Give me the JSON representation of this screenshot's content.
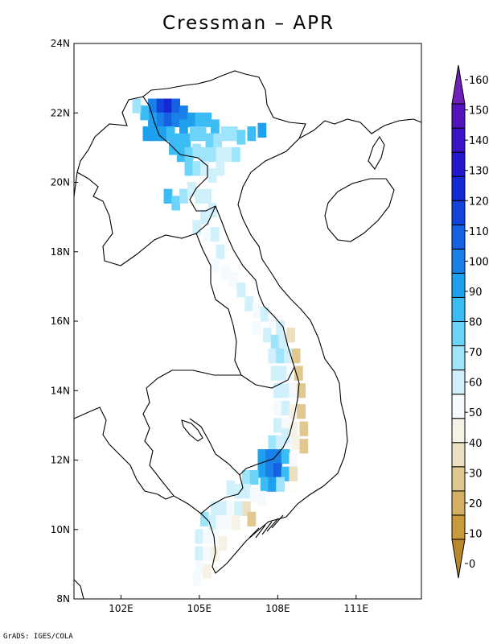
{
  "title": "Cressman – APR",
  "credit": "GrADS: IGES/COLA",
  "map": {
    "lon_range": [
      100.2,
      113.5
    ],
    "lat_range": [
      8,
      24
    ],
    "lat_ticks": [
      "8N",
      "10N",
      "12N",
      "14N",
      "16N",
      "18N",
      "20N",
      "22N",
      "24N"
    ],
    "lon_ticks": [
      "102E",
      "105E",
      "108E",
      "111E"
    ],
    "cells": [
      [
        103.5,
        22.2,
        140
      ],
      [
        103.8,
        22.2,
        150
      ],
      [
        104.1,
        22.2,
        130
      ],
      [
        103.2,
        22.2,
        120
      ],
      [
        104.4,
        22.0,
        120
      ],
      [
        103.5,
        21.8,
        120
      ],
      [
        103.8,
        21.8,
        130
      ],
      [
        104.1,
        21.8,
        120
      ],
      [
        103.2,
        21.8,
        110
      ],
      [
        104.4,
        21.6,
        110
      ],
      [
        104.7,
        21.8,
        110
      ],
      [
        105.0,
        21.8,
        100
      ],
      [
        105.3,
        21.8,
        100
      ],
      [
        105.6,
        21.6,
        100
      ],
      [
        102.9,
        22.0,
        100
      ],
      [
        102.6,
        22.2,
        80
      ],
      [
        103.0,
        21.4,
        110
      ],
      [
        103.3,
        21.4,
        110
      ],
      [
        103.6,
        21.4,
        110
      ],
      [
        103.9,
        21.4,
        100
      ],
      [
        104.2,
        21.2,
        100
      ],
      [
        104.5,
        21.2,
        100
      ],
      [
        104.8,
        21.4,
        90
      ],
      [
        105.1,
        21.4,
        90
      ],
      [
        105.4,
        21.2,
        90
      ],
      [
        105.7,
        21.2,
        80
      ],
      [
        106.0,
        21.4,
        80
      ],
      [
        106.3,
        21.4,
        80
      ],
      [
        106.6,
        21.3,
        90
      ],
      [
        107.0,
        21.4,
        100
      ],
      [
        107.4,
        21.5,
        110
      ],
      [
        104.0,
        21.0,
        100
      ],
      [
        104.3,
        20.8,
        100
      ],
      [
        104.6,
        20.8,
        90
      ],
      [
        104.9,
        20.9,
        80
      ],
      [
        105.2,
        20.8,
        80
      ],
      [
        105.5,
        20.8,
        80
      ],
      [
        105.8,
        20.8,
        70
      ],
      [
        106.1,
        20.8,
        70
      ],
      [
        106.4,
        20.8,
        80
      ],
      [
        104.6,
        20.4,
        90
      ],
      [
        104.9,
        20.4,
        80
      ],
      [
        105.2,
        20.4,
        70
      ],
      [
        105.5,
        20.2,
        70
      ],
      [
        105.8,
        20.4,
        70
      ],
      [
        103.8,
        19.6,
        100
      ],
      [
        104.1,
        19.4,
        90
      ],
      [
        104.4,
        19.6,
        80
      ],
      [
        104.7,
        19.8,
        70
      ],
      [
        105.0,
        19.6,
        70
      ],
      [
        105.3,
        19.6,
        70
      ],
      [
        105.5,
        19.2,
        70
      ],
      [
        105.2,
        19.0,
        70
      ],
      [
        104.9,
        18.7,
        70
      ],
      [
        105.3,
        18.5,
        60
      ],
      [
        105.6,
        18.5,
        70
      ],
      [
        105.8,
        18.0,
        70
      ],
      [
        105.6,
        17.6,
        60
      ],
      [
        106.0,
        17.4,
        60
      ],
      [
        106.3,
        17.2,
        60
      ],
      [
        106.6,
        16.9,
        70
      ],
      [
        106.9,
        16.5,
        70
      ],
      [
        107.2,
        16.3,
        60
      ],
      [
        107.5,
        16.2,
        70
      ],
      [
        107.8,
        16.0,
        60
      ],
      [
        108.1,
        15.8,
        70
      ],
      [
        107.6,
        15.6,
        70
      ],
      [
        107.9,
        15.4,
        80
      ],
      [
        108.2,
        15.4,
        70
      ],
      [
        108.5,
        15.6,
        40
      ],
      [
        107.8,
        15.0,
        70
      ],
      [
        108.1,
        15.0,
        80
      ],
      [
        108.4,
        15.0,
        70
      ],
      [
        108.7,
        15.0,
        30
      ],
      [
        107.9,
        14.5,
        70
      ],
      [
        108.2,
        14.5,
        70
      ],
      [
        108.5,
        14.5,
        60
      ],
      [
        108.8,
        14.5,
        30
      ],
      [
        108.0,
        14.0,
        70
      ],
      [
        108.3,
        14.0,
        70
      ],
      [
        108.6,
        14.0,
        60
      ],
      [
        108.9,
        14.0,
        30
      ],
      [
        108.0,
        13.5,
        60
      ],
      [
        108.3,
        13.5,
        70
      ],
      [
        108.6,
        13.4,
        50
      ],
      [
        108.9,
        13.4,
        30
      ],
      [
        108.0,
        13.0,
        70
      ],
      [
        108.3,
        13.0,
        60
      ],
      [
        108.6,
        12.9,
        50
      ],
      [
        109.0,
        12.9,
        30
      ],
      [
        107.8,
        12.5,
        80
      ],
      [
        108.1,
        12.5,
        70
      ],
      [
        108.4,
        12.5,
        60
      ],
      [
        108.7,
        12.5,
        50
      ],
      [
        109.0,
        12.4,
        30
      ],
      [
        107.4,
        12.1,
        110
      ],
      [
        107.7,
        12.1,
        120
      ],
      [
        108.0,
        12.1,
        120
      ],
      [
        108.3,
        12.1,
        100
      ],
      [
        108.6,
        12.0,
        60
      ],
      [
        107.4,
        11.7,
        110
      ],
      [
        107.7,
        11.7,
        120
      ],
      [
        108.0,
        11.7,
        130
      ],
      [
        108.3,
        11.6,
        100
      ],
      [
        108.6,
        11.6,
        40
      ],
      [
        106.8,
        11.5,
        80
      ],
      [
        107.1,
        11.5,
        90
      ],
      [
        107.5,
        11.3,
        100
      ],
      [
        107.8,
        11.3,
        110
      ],
      [
        108.1,
        11.3,
        80
      ],
      [
        106.2,
        11.2,
        70
      ],
      [
        106.5,
        11.1,
        70
      ],
      [
        106.8,
        11.1,
        70
      ],
      [
        107.1,
        11.0,
        60
      ],
      [
        107.4,
        10.9,
        60
      ],
      [
        105.6,
        10.6,
        70
      ],
      [
        105.9,
        10.6,
        70
      ],
      [
        106.2,
        10.6,
        60
      ],
      [
        106.5,
        10.6,
        70
      ],
      [
        106.8,
        10.6,
        40
      ],
      [
        105.2,
        10.3,
        80
      ],
      [
        105.5,
        10.2,
        70
      ],
      [
        105.8,
        10.2,
        60
      ],
      [
        106.1,
        10.2,
        60
      ],
      [
        106.4,
        10.2,
        50
      ],
      [
        107.0,
        10.3,
        30
      ],
      [
        105.0,
        9.8,
        70
      ],
      [
        105.3,
        9.8,
        60
      ],
      [
        105.6,
        9.8,
        60
      ],
      [
        105.9,
        9.6,
        50
      ],
      [
        105.0,
        9.3,
        70
      ],
      [
        105.3,
        9.3,
        60
      ],
      [
        105.6,
        9.3,
        50
      ],
      [
        105.0,
        8.9,
        60
      ],
      [
        105.3,
        8.8,
        50
      ],
      [
        104.9,
        8.6,
        60
      ],
      [
        107.2,
        15.8,
        60
      ],
      [
        108.3,
        12.7,
        70
      ]
    ]
  },
  "colorbar": {
    "levels": [
      0,
      10,
      20,
      30,
      40,
      50,
      60,
      70,
      80,
      90,
      100,
      110,
      120,
      130,
      140,
      150,
      160
    ],
    "labels": [
      "0",
      "10",
      "20",
      "30",
      "40",
      "50",
      "60",
      "70",
      "80",
      "90",
      "100",
      "110",
      "120",
      "130",
      "140",
      "150",
      "160"
    ],
    "colors": [
      "#b8882a",
      "#c89a3c",
      "#d4b062",
      "#e0c890",
      "#ece0c2",
      "#f6f2e6",
      "#f4fafe",
      "#d0f0fc",
      "#9ee4fa",
      "#6cd4f8",
      "#3cbcf4",
      "#1ea0ee",
      "#1880e8",
      "#1462e2",
      "#1244dc",
      "#1428d4",
      "#2418cc",
      "#3a14c4",
      "#5414bc",
      "#7020b8"
    ]
  }
}
